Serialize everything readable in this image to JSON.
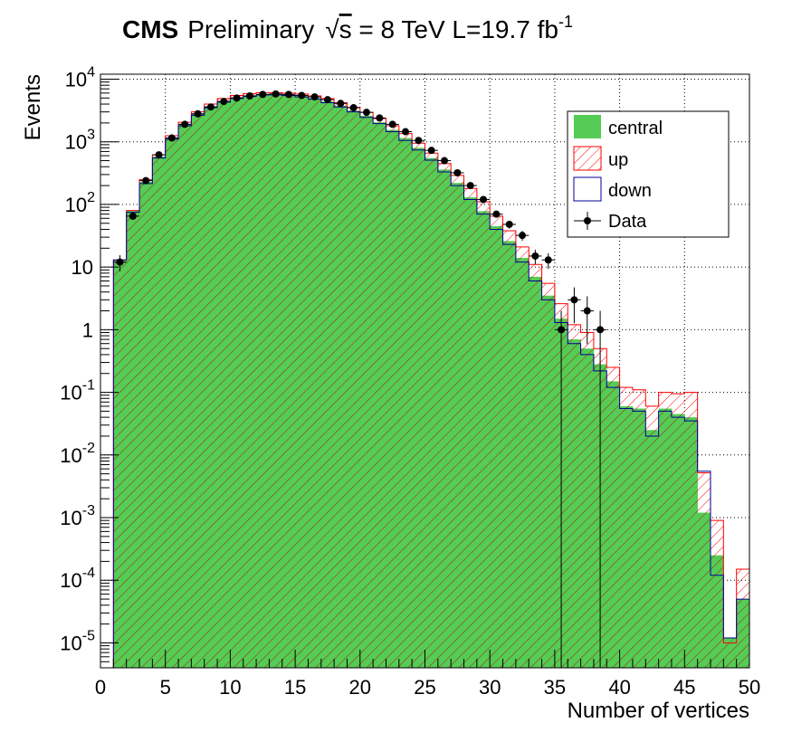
{
  "title": {
    "experiment": "CMS",
    "status": "Preliminary",
    "energy_prefix": "s",
    "energy_value": " = 8 TeV L=19.7 fb",
    "lumi_exponent": "-1"
  },
  "chart_data": {
    "type": "histogram",
    "xlabel": "Number of vertices",
    "ylabel": "Events",
    "xlim": [
      0,
      50
    ],
    "ylim": [
      4e-06,
      12000
    ],
    "yscale": "log",
    "grid": true,
    "legend_position": "top-right",
    "x_ticks": [
      "0",
      "5",
      "10",
      "15",
      "20",
      "25",
      "30",
      "35",
      "40",
      "45",
      "50"
    ],
    "y_ticks": [
      {
        "base": "10",
        "exp": "-5",
        "value": 1e-05
      },
      {
        "base": "10",
        "exp": "-4",
        "value": 0.0001
      },
      {
        "base": "10",
        "exp": "-3",
        "value": 0.001
      },
      {
        "base": "10",
        "exp": "-2",
        "value": 0.01
      },
      {
        "base": "10",
        "exp": "-1",
        "value": 0.1
      },
      {
        "base": "1",
        "exp": "",
        "value": 1
      },
      {
        "base": "10",
        "exp": "",
        "value": 10
      },
      {
        "base": "10",
        "exp": "2",
        "value": 100
      },
      {
        "base": "10",
        "exp": "3",
        "value": 1000
      },
      {
        "base": "10",
        "exp": "4",
        "value": 10000
      }
    ],
    "bin_edges_start": 0,
    "bin_width": 1,
    "series": [
      {
        "name": "central",
        "color": "#55cc55",
        "style": "filled",
        "values": [
          0,
          13,
          80,
          230,
          580,
          1150,
          1900,
          2800,
          3700,
          4500,
          5100,
          5500,
          5800,
          5800,
          5650,
          5400,
          5000,
          4400,
          3750,
          3150,
          2600,
          2050,
          1550,
          1150,
          800,
          550,
          360,
          220,
          130,
          78,
          45,
          26,
          14,
          7,
          3.5,
          1.5,
          0.7,
          0.5,
          0.28,
          0.15,
          0.06,
          0.055,
          0.025,
          0.055,
          0.045,
          0.04,
          0.0012,
          0.00025,
          1.2e-05,
          5e-05
        ]
      },
      {
        "name": "up",
        "color": "#ff0000",
        "style": "hatched",
        "values": [
          0,
          13,
          80,
          250,
          620,
          1250,
          2050,
          3000,
          4000,
          4900,
          5500,
          5900,
          6100,
          6100,
          6000,
          5800,
          5400,
          4900,
          4200,
          3550,
          2950,
          2350,
          1800,
          1350,
          950,
          660,
          450,
          290,
          180,
          110,
          65,
          38,
          21,
          11,
          5.5,
          2.6,
          1.2,
          0.9,
          0.5,
          0.25,
          0.12,
          0.11,
          0.06,
          0.1,
          0.095,
          0.1,
          0.0052,
          0.0009,
          1e-05,
          0.00015
        ]
      },
      {
        "name": "down",
        "color": "#000099",
        "style": "outline",
        "values": [
          0,
          13,
          75,
          215,
          550,
          1100,
          1800,
          2650,
          3500,
          4300,
          4900,
          5300,
          5600,
          5600,
          5500,
          5200,
          4800,
          4200,
          3600,
          3000,
          2450,
          1950,
          1450,
          1050,
          740,
          510,
          330,
          200,
          120,
          70,
          40,
          23,
          12,
          6,
          3,
          1.3,
          0.6,
          0.4,
          0.22,
          0.12,
          0.055,
          0.05,
          0.02,
          0.05,
          0.04,
          0.035,
          0.0055,
          0.00012,
          1.2e-05,
          5e-05
        ]
      },
      {
        "name": "Data",
        "color": "#000000",
        "style": "points",
        "x": [
          1,
          2,
          3,
          4,
          5,
          6,
          7,
          8,
          9,
          10,
          11,
          12,
          13,
          14,
          15,
          16,
          17,
          18,
          19,
          20,
          21,
          22,
          23,
          24,
          25,
          26,
          27,
          28,
          29,
          30,
          31,
          32,
          33,
          34,
          35,
          36,
          37,
          38
        ],
        "values": [
          12,
          65,
          240,
          620,
          1150,
          1900,
          2800,
          3600,
          4400,
          5000,
          5400,
          5700,
          5800,
          5700,
          5500,
          5200,
          4700,
          4100,
          3500,
          2950,
          2400,
          1900,
          1450,
          1050,
          730,
          500,
          320,
          200,
          120,
          70,
          48,
          32,
          15,
          13,
          1,
          3,
          2,
          1
        ]
      }
    ]
  }
}
